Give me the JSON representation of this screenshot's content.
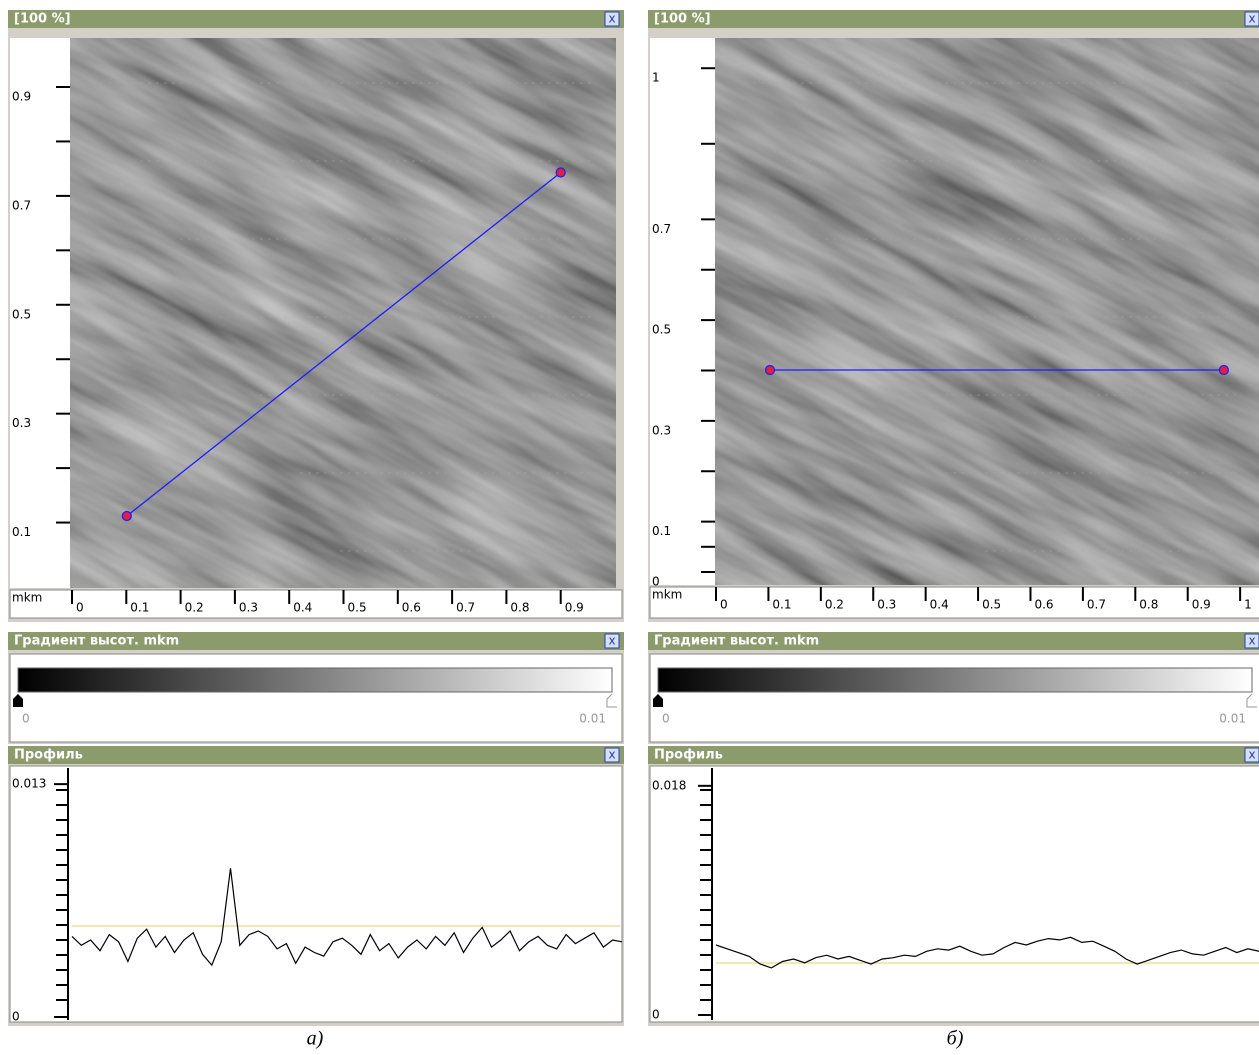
{
  "panels": [
    {
      "title": "[100 %]",
      "close": "x",
      "image": {
        "unit": "mkm",
        "xlim": [
          0,
          1.0
        ],
        "ylim": [
          0,
          0.99
        ],
        "xticks": [
          0,
          0.1,
          0.2,
          0.3,
          0.4,
          0.5,
          0.6,
          0.7,
          0.8,
          0.9
        ],
        "yticks": [
          0.1,
          0.3,
          0.5,
          0.7,
          0.9
        ],
        "line": [
          {
            "x": 0.101,
            "y": 0.112
          },
          {
            "x": 0.9,
            "y": 0.743
          }
        ]
      },
      "gradient": {
        "title": "Градиент высот. mkm",
        "close": "x",
        "min_label": "0",
        "max_label": "0.01"
      },
      "profile": {
        "title": "Профиль",
        "close": "x",
        "ylim": [
          0,
          0.0139
        ],
        "yticks": [
          0,
          0.013
        ],
        "values": [
          0.0045,
          0.004,
          0.0043,
          0.0037,
          0.0046,
          0.0042,
          0.0031,
          0.0044,
          0.0049,
          0.0039,
          0.0045,
          0.0036,
          0.0043,
          0.0047,
          0.0035,
          0.0029,
          0.0042,
          0.0083,
          0.004,
          0.0046,
          0.0048,
          0.0045,
          0.0038,
          0.0041,
          0.003,
          0.0039,
          0.0036,
          0.0034,
          0.0042,
          0.0044,
          0.004,
          0.0035,
          0.0046,
          0.0037,
          0.0041,
          0.0033,
          0.0039,
          0.0043,
          0.0038,
          0.0045,
          0.004,
          0.0047,
          0.0036,
          0.0044,
          0.005,
          0.0039,
          0.0043,
          0.0048,
          0.0037,
          0.0042,
          0.0045,
          0.004,
          0.0038,
          0.0046,
          0.0041,
          0.0044,
          0.0047,
          0.0039,
          0.0043,
          0.0042
        ]
      },
      "caption": "a)"
    },
    {
      "title": "[100 %]",
      "close": "x",
      "image": {
        "unit": "mkm",
        "xlim": [
          0,
          1.036
        ],
        "ylim": [
          0,
          1.06
        ],
        "xticks": [
          0,
          0.1,
          0.2,
          0.3,
          0.4,
          0.5,
          0.6,
          0.7,
          0.8,
          0.9,
          1
        ],
        "yticks": [
          0,
          0.1,
          0.3,
          0.5,
          0.7,
          1
        ],
        "line": [
          {
            "x": 0.103,
            "y": 0.401
          },
          {
            "x": 0.969,
            "y": 0.401
          }
        ]
      },
      "gradient": {
        "title": "Градиент высот. mkm",
        "close": "x",
        "min_label": "0",
        "max_label": "0.01"
      },
      "profile": {
        "title": "Профиль",
        "close": "x",
        "ylim": [
          0,
          0.0194
        ],
        "yticks": [
          0,
          0.018
        ],
        "values": [
          0.0055,
          0.0052,
          0.0049,
          0.0046,
          0.004,
          0.0037,
          0.0042,
          0.0044,
          0.0041,
          0.0045,
          0.0047,
          0.0044,
          0.0046,
          0.0043,
          0.004,
          0.0044,
          0.0045,
          0.0047,
          0.0046,
          0.005,
          0.0052,
          0.0051,
          0.0054,
          0.005,
          0.0047,
          0.0048,
          0.0053,
          0.0057,
          0.0055,
          0.0058,
          0.006,
          0.0059,
          0.0061,
          0.0057,
          0.0058,
          0.0054,
          0.005,
          0.0044,
          0.004,
          0.0043,
          0.0046,
          0.0049,
          0.0051,
          0.0048,
          0.0047,
          0.005,
          0.0053,
          0.0049,
          0.0052,
          0.005
        ]
      },
      "caption": "б)"
    }
  ]
}
